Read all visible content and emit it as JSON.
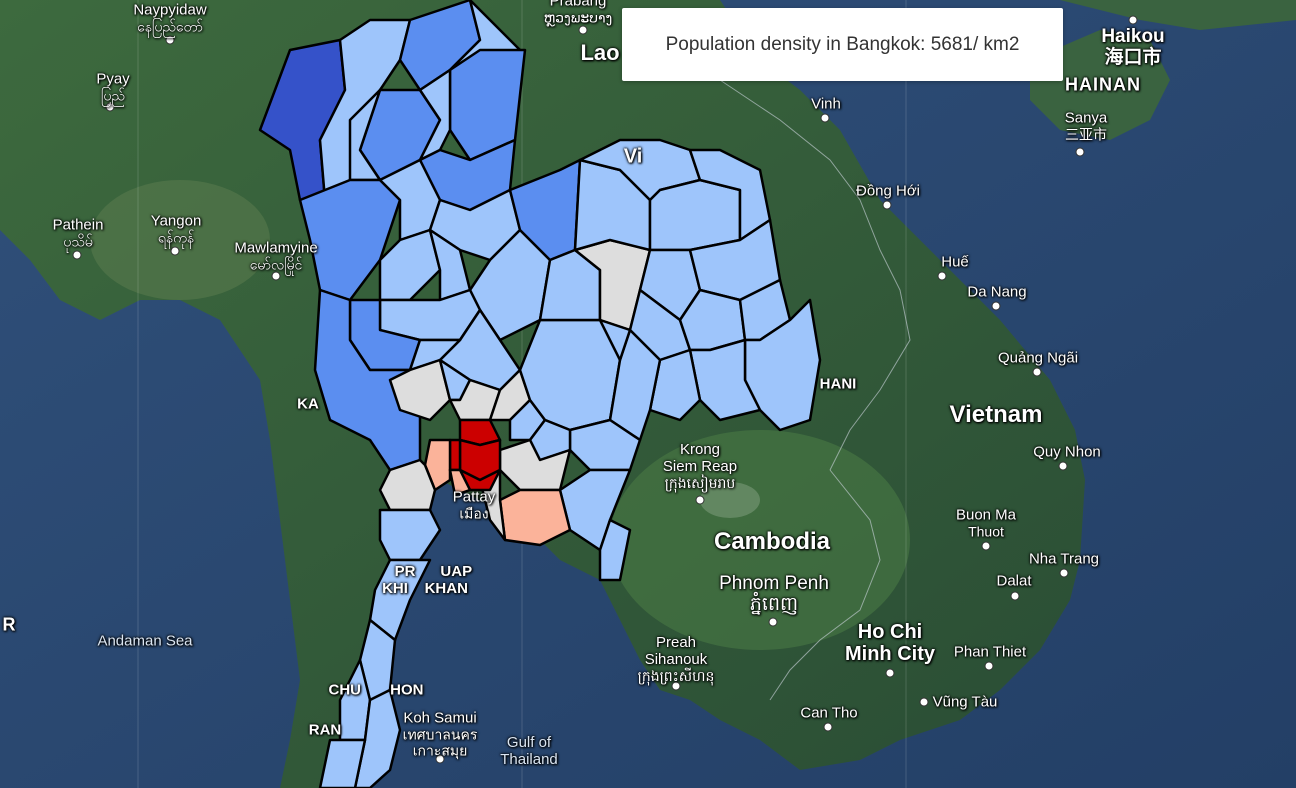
{
  "tooltip": {
    "text": "Population density in Bangkok: 5681/ km2"
  },
  "colors": {
    "low": "#9ec5fb",
    "mid": "#5b8ef0",
    "high": "#3552c9",
    "nodata": "#dddddd",
    "peach": "#fbb39a",
    "red": "#cc0000",
    "border": "#000000",
    "land": "#2f5a3a",
    "sea": "#2c4b73"
  },
  "labels": {
    "naypyidaw": {
      "name": "Naypyidaw",
      "local": "နေပြည်တော်"
    },
    "prabang": {
      "name": "Prabang",
      "local": "ຫຼວງພະບາງ"
    },
    "lao": "Lao",
    "pyay": {
      "name": "Pyay",
      "local": "ပြည်"
    },
    "pathein": {
      "name": "Pathein",
      "local": "ပုသိမ်"
    },
    "yangon": {
      "name": "Yangon",
      "local": "ရန်ကုန်"
    },
    "mawlamyine": {
      "name": "Mawlamyine",
      "local": "မော်လမြိုင်"
    },
    "vinh": "Vinh",
    "dong_hoi": "Đồng Hới",
    "hue": "Huế",
    "da_nang": "Da Nang",
    "quang_ngai": "Quảng Ngãi",
    "vietnam": "Vietnam",
    "quy_nhon": "Quy Nhon",
    "buon_ma_thuot": {
      "line1": "Buon Ma",
      "line2": "Thuot"
    },
    "nha_trang": "Nha Trang",
    "dalat": "Dalat",
    "phan_thiet": "Phan Thiet",
    "vung_tau": "Vũng Tàu",
    "can_tho": "Can Tho",
    "ho_chi_minh": {
      "line1": "Ho Chi",
      "line2": "Minh City"
    },
    "haikou": {
      "name": "Haikou",
      "local": "海口市"
    },
    "hainan": "HAINAN",
    "sanya": {
      "name": "Sanya",
      "local": "三亚市"
    },
    "krong_siem_reap": {
      "line1": "Krong",
      "line2": "Siem Reap",
      "local": "ក្រុងសៀមរាប"
    },
    "cambodia": "Cambodia",
    "phnom_penh": {
      "name": "Phnom Penh",
      "local": "ភ្នំពេញ"
    },
    "preah_sihanouk": {
      "line1": "Preah",
      "line2": "Sihanouk",
      "local": "ក្រុងព្រះសីហនុ"
    },
    "pattaya": {
      "name": "Pattay",
      "local": "เมือง"
    },
    "prachuap": {
      "line1": "PR      UAP",
      "line2": "KHI    KHAN"
    },
    "chumphon": "CHU       HON",
    "ranong": "RAN",
    "koh_samui": {
      "name": "Koh Samui",
      "local": "เทศบาลนคร",
      "local2": "เกาะสมุย"
    },
    "gulf": {
      "line1": "Gulf of",
      "line2": "Thailand"
    },
    "andaman": "Andaman Sea",
    "vi": "Vi",
    "hani": "HANI",
    "kan": "KA",
    "left_r": "R"
  }
}
